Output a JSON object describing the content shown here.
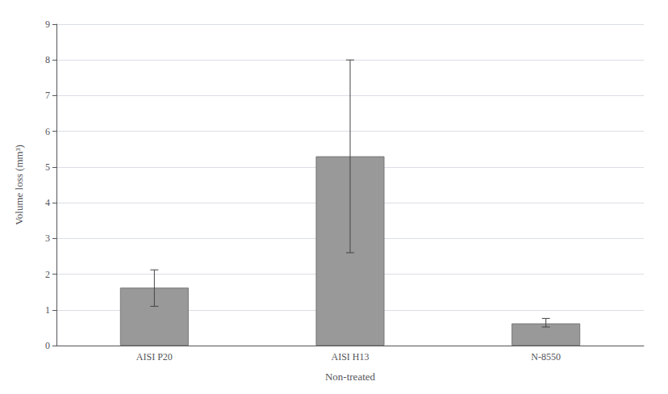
{
  "chart_data": {
    "type": "bar",
    "xlabel": "Non-treated",
    "ylabel": "Volume loss (mm³)",
    "categories": [
      "AISI P20",
      "AISI H13",
      "N-8550"
    ],
    "values": [
      1.62,
      5.3,
      0.62
    ],
    "errors_upper": [
      0.5,
      2.7,
      0.14
    ],
    "errors_lower": [
      0.52,
      2.7,
      0.1
    ],
    "color": "#999999",
    "ylim": [
      0,
      9
    ],
    "yticks": [
      0,
      1,
      2,
      3,
      4,
      5,
      6,
      7,
      8,
      9
    ],
    "grid": true
  }
}
